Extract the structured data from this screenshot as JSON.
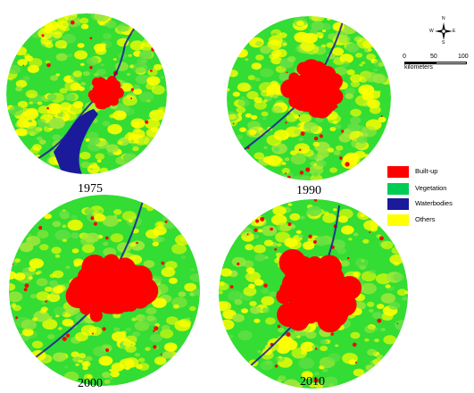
{
  "maps": [
    {
      "year": "1975"
    },
    {
      "year": "1990"
    },
    {
      "year": "2000"
    },
    {
      "year": "2010"
    }
  ],
  "legend": [
    {
      "label": "Built-up",
      "color": "#ff0000"
    },
    {
      "label": "Vegetation",
      "color": "#00cc55"
    },
    {
      "label": "Waterbodies",
      "color": "#1a1a9a"
    },
    {
      "label": "Others",
      "color": "#ffff00"
    }
  ],
  "compass": {
    "n": "N",
    "s": "S",
    "e": "E",
    "w": "W"
  },
  "scale": {
    "ticks": [
      "0",
      "50",
      "100"
    ],
    "unit": "kilometers"
  },
  "colors": {
    "builtup": "#ff0000",
    "vegetation": "#22dd22",
    "water": "#1a1a9a",
    "others": "#ffff00"
  }
}
